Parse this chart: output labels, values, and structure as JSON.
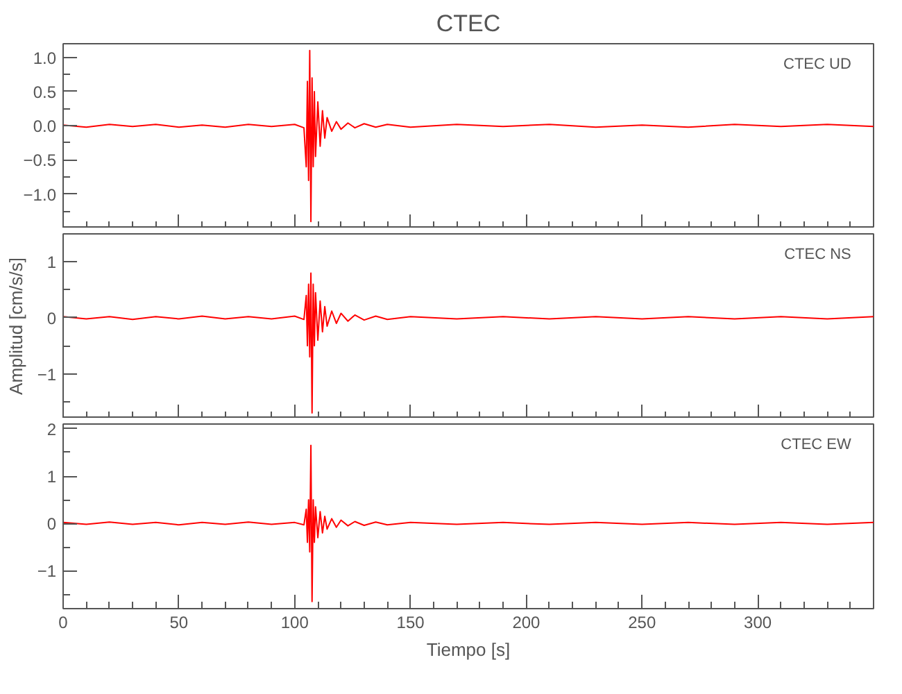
{
  "chart_data": [
    {
      "type": "line",
      "title": "CTEC",
      "annotations": [
        "CTEC   UD"
      ],
      "tick_labels": "y",
      "grid": false,
      "marker": "none",
      "line_style": "solid",
      "xlim": [
        0,
        350
      ],
      "ylim": [
        -1.5,
        1.2
      ],
      "xticks": [
        0,
        {
          "value": 10,
          "label": null
        },
        {
          "value": 20,
          "label": null
        },
        {
          "value": 30,
          "label": null
        },
        {
          "value": 40,
          "label": null
        },
        50,
        {
          "value": 60,
          "label": null
        },
        {
          "value": 70,
          "label": null
        },
        {
          "value": 80,
          "label": null
        },
        {
          "value": 90,
          "label": null
        },
        100,
        {
          "value": 110,
          "label": null
        },
        {
          "value": 120,
          "label": null
        },
        {
          "value": 130,
          "label": null
        },
        {
          "value": 140,
          "label": null
        },
        150,
        {
          "value": 160,
          "label": null
        },
        {
          "value": 170,
          "label": null
        },
        {
          "value": 180,
          "label": null
        },
        {
          "value": 190,
          "label": null
        },
        200,
        {
          "value": 210,
          "label": null
        },
        {
          "value": 220,
          "label": null
        },
        {
          "value": 230,
          "label": null
        },
        {
          "value": 240,
          "label": null
        },
        250,
        {
          "value": 260,
          "label": null
        },
        {
          "value": 270,
          "label": null
        },
        {
          "value": 280,
          "label": null
        },
        {
          "value": 290,
          "label": null
        },
        300,
        {
          "value": 310,
          "label": null
        },
        {
          "value": 320,
          "label": null
        },
        {
          "value": 330,
          "label": null
        },
        {
          "value": 340,
          "label": null
        }
      ],
      "yticks": [
        {
          "value": -1.25,
          "label": null
        },
        {
          "value": -1,
          "label": "−1.0"
        },
        {
          "value": -0.75,
          "label": null
        },
        {
          "value": -0.5,
          "label": "−0.5"
        },
        {
          "value": -0.25,
          "label": null
        },
        {
          "value": 0,
          "label": "0.0"
        },
        {
          "value": 0.25,
          "label": null
        },
        {
          "value": 0.5,
          "label": "0.5"
        },
        {
          "value": 0.75,
          "label": null
        },
        {
          "value": 1,
          "label": "1.0"
        }
      ],
      "x": [
        0,
        10,
        20,
        30,
        40,
        50,
        60,
        70,
        80,
        90,
        100,
        104,
        105,
        105.5,
        106,
        106.5,
        107,
        107.5,
        108,
        108.5,
        109,
        110,
        111,
        112,
        113,
        114,
        116,
        118,
        120,
        123,
        126,
        130,
        135,
        140,
        150,
        170,
        190,
        210,
        230,
        250,
        270,
        290,
        310,
        330,
        350
      ],
      "series": [
        {
          "color": "#ff0000",
          "values": [
            0.01,
            -0.02,
            0.02,
            -0.01,
            0.02,
            -0.02,
            0.01,
            -0.02,
            0.02,
            -0.01,
            0.02,
            -0.03,
            -0.6,
            0.65,
            -0.8,
            1.1,
            -1.4,
            0.7,
            -0.6,
            0.5,
            -0.45,
            0.35,
            -0.3,
            0.22,
            -0.18,
            0.12,
            -0.08,
            0.06,
            -0.05,
            0.04,
            -0.03,
            0.03,
            -0.02,
            0.02,
            -0.02,
            0.02,
            -0.01,
            0.02,
            -0.02,
            0.01,
            -0.02,
            0.02,
            -0.01,
            0.02,
            -0.01
          ]
        }
      ]
    },
    {
      "type": "line",
      "ylabel": "Amplitud [cm/s/s]",
      "annotations": [
        "CTEC   NS"
      ],
      "tick_labels": "y",
      "grid": false,
      "marker": "none",
      "line_style": "solid",
      "xlim": [
        0,
        350
      ],
      "ylim": [
        -1.8,
        1.5
      ],
      "xticks": [
        0,
        {
          "value": 10,
          "label": null
        },
        {
          "value": 20,
          "label": null
        },
        {
          "value": 30,
          "label": null
        },
        {
          "value": 40,
          "label": null
        },
        50,
        {
          "value": 60,
          "label": null
        },
        {
          "value": 70,
          "label": null
        },
        {
          "value": 80,
          "label": null
        },
        {
          "value": 90,
          "label": null
        },
        100,
        {
          "value": 110,
          "label": null
        },
        {
          "value": 120,
          "label": null
        },
        {
          "value": 130,
          "label": null
        },
        {
          "value": 140,
          "label": null
        },
        150,
        {
          "value": 160,
          "label": null
        },
        {
          "value": 170,
          "label": null
        },
        {
          "value": 180,
          "label": null
        },
        {
          "value": 190,
          "label": null
        },
        200,
        {
          "value": 210,
          "label": null
        },
        {
          "value": 220,
          "label": null
        },
        {
          "value": 230,
          "label": null
        },
        {
          "value": 240,
          "label": null
        },
        250,
        {
          "value": 260,
          "label": null
        },
        {
          "value": 270,
          "label": null
        },
        {
          "value": 280,
          "label": null
        },
        {
          "value": 290,
          "label": null
        },
        300,
        {
          "value": 310,
          "label": null
        },
        {
          "value": 320,
          "label": null
        },
        {
          "value": 330,
          "label": null
        },
        {
          "value": 340,
          "label": null
        }
      ],
      "yticks": [
        {
          "value": -1.5,
          "label": null
        },
        -1,
        {
          "value": -0.5,
          "label": null
        },
        0,
        {
          "value": 0.5,
          "label": null
        },
        1
      ],
      "x": [
        0,
        10,
        20,
        30,
        40,
        50,
        60,
        70,
        80,
        90,
        100,
        104,
        105,
        105.5,
        106,
        106.5,
        107,
        107.5,
        108,
        108.5,
        109,
        110,
        111,
        112,
        113,
        114,
        116,
        118,
        120,
        123,
        126,
        130,
        135,
        140,
        150,
        170,
        190,
        210,
        230,
        250,
        270,
        290,
        310,
        330,
        350
      ],
      "series": [
        {
          "color": "#ff0000",
          "values": [
            0.02,
            -0.02,
            0.02,
            -0.03,
            0.02,
            -0.02,
            0.03,
            -0.02,
            0.02,
            -0.02,
            0.03,
            -0.03,
            0.4,
            -0.5,
            0.6,
            -0.7,
            0.8,
            -1.7,
            0.6,
            -0.5,
            0.45,
            -0.4,
            0.3,
            -0.25,
            0.2,
            -0.15,
            0.12,
            -0.1,
            0.08,
            -0.06,
            0.05,
            -0.04,
            0.03,
            -0.03,
            0.02,
            -0.02,
            0.02,
            -0.02,
            0.02,
            -0.02,
            0.02,
            -0.02,
            0.02,
            -0.02,
            0.02
          ]
        }
      ]
    },
    {
      "type": "line",
      "xlabel": "Tiempo [s]",
      "annotations": [
        "CTEC   EW"
      ],
      "grid": false,
      "marker": "none",
      "line_style": "solid",
      "xlim": [
        0,
        350
      ],
      "ylim": [
        -1.8,
        2.1
      ],
      "xticks": [
        0,
        {
          "value": 10,
          "label": null
        },
        {
          "value": 20,
          "label": null
        },
        {
          "value": 30,
          "label": null
        },
        {
          "value": 40,
          "label": null
        },
        50,
        {
          "value": 60,
          "label": null
        },
        {
          "value": 70,
          "label": null
        },
        {
          "value": 80,
          "label": null
        },
        {
          "value": 90,
          "label": null
        },
        100,
        {
          "value": 110,
          "label": null
        },
        {
          "value": 120,
          "label": null
        },
        {
          "value": 130,
          "label": null
        },
        {
          "value": 140,
          "label": null
        },
        150,
        {
          "value": 160,
          "label": null
        },
        {
          "value": 170,
          "label": null
        },
        {
          "value": 180,
          "label": null
        },
        {
          "value": 190,
          "label": null
        },
        200,
        {
          "value": 210,
          "label": null
        },
        {
          "value": 220,
          "label": null
        },
        {
          "value": 230,
          "label": null
        },
        {
          "value": 240,
          "label": null
        },
        250,
        {
          "value": 260,
          "label": null
        },
        {
          "value": 270,
          "label": null
        },
        {
          "value": 280,
          "label": null
        },
        {
          "value": 290,
          "label": null
        },
        300,
        {
          "value": 310,
          "label": null
        },
        {
          "value": 320,
          "label": null
        },
        {
          "value": 330,
          "label": null
        },
        {
          "value": 340,
          "label": null
        }
      ],
      "yticks": [
        {
          "value": -1.5,
          "label": null
        },
        -1,
        {
          "value": -0.5,
          "label": null
        },
        0,
        {
          "value": 0.5,
          "label": null
        },
        1,
        {
          "value": 1.5,
          "label": null
        },
        2
      ],
      "x": [
        0,
        10,
        20,
        30,
        40,
        50,
        60,
        70,
        80,
        90,
        100,
        104,
        105,
        105.5,
        106,
        106.5,
        107,
        107.5,
        108,
        108.5,
        109,
        110,
        111,
        112,
        113,
        114,
        116,
        118,
        120,
        123,
        126,
        130,
        135,
        140,
        150,
        170,
        190,
        210,
        230,
        250,
        270,
        290,
        310,
        330,
        350
      ],
      "series": [
        {
          "color": "#ff0000",
          "values": [
            0.02,
            -0.02,
            0.03,
            -0.02,
            0.02,
            -0.03,
            0.02,
            -0.02,
            0.03,
            -0.02,
            0.02,
            -0.03,
            0.3,
            -0.4,
            0.5,
            -0.6,
            1.65,
            -1.65,
            0.5,
            -0.4,
            0.35,
            -0.3,
            0.25,
            -0.2,
            0.15,
            -0.12,
            0.1,
            -0.08,
            0.07,
            -0.05,
            0.04,
            -0.04,
            0.03,
            -0.03,
            0.02,
            -0.02,
            0.02,
            -0.02,
            0.02,
            -0.02,
            0.02,
            -0.02,
            0.02,
            -0.02,
            0.02
          ]
        }
      ]
    }
  ]
}
